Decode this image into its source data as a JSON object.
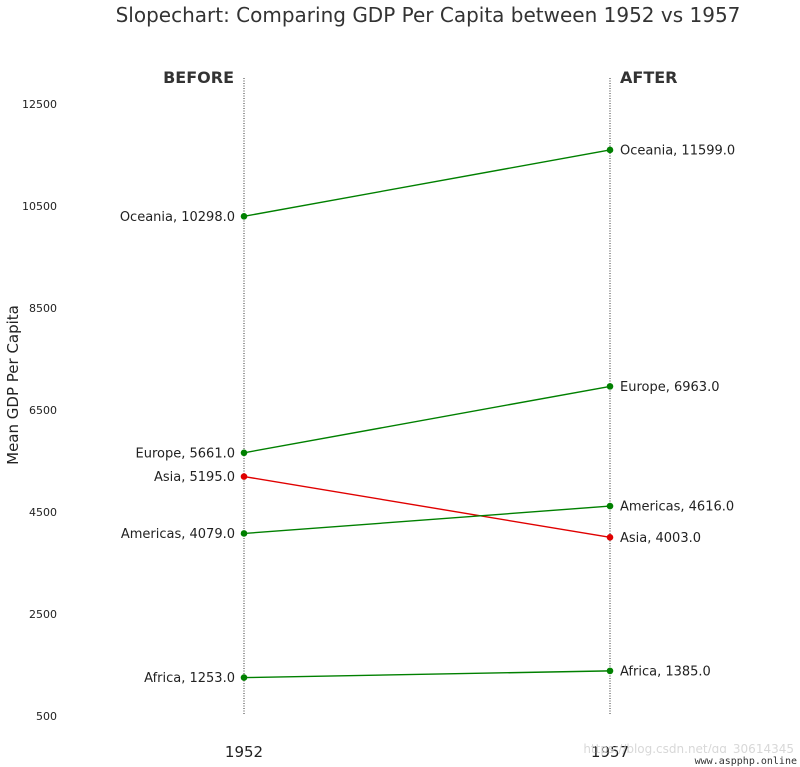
{
  "chart_data": {
    "type": "line",
    "title": "Slopechart: Comparing GDP Per Capita between 1952 vs 1957",
    "ylabel": "Mean GDP Per Capita",
    "ylim": [
      500,
      13000
    ],
    "yticks": [
      "12500",
      "10500",
      "8500",
      "6500",
      "4500",
      "2500",
      "500"
    ],
    "x": [
      "1952",
      "1957"
    ],
    "column_headers": [
      "BEFORE",
      "AFTER"
    ],
    "series": [
      {
        "name": "Oceania",
        "values": [
          10298.0,
          11599.0
        ],
        "color": "#008000"
      },
      {
        "name": "Europe",
        "values": [
          5661.0,
          6963.0
        ],
        "color": "#008000"
      },
      {
        "name": "Asia",
        "values": [
          5195.0,
          4003.0
        ],
        "color": "#e00000"
      },
      {
        "name": "Americas",
        "values": [
          4079.0,
          4616.0
        ],
        "color": "#008000"
      },
      {
        "name": "Africa",
        "values": [
          1253.0,
          1385.0
        ],
        "color": "#008000"
      }
    ],
    "left_labels": [
      "Oceania, 10298.0",
      "Europe, 5661.0",
      "Asia, 5195.0",
      "Americas, 4079.0",
      "Africa, 1253.0"
    ],
    "right_labels": [
      "Oceania, 11599.0",
      "Europe, 6963.0",
      "Asia, 4003.0",
      "Americas, 4616.0",
      "Africa, 1385.0"
    ],
    "grid": false
  },
  "watermark": "https://blog.csdn.net/qq_30614345",
  "watermark2": "www.aspphp.online"
}
